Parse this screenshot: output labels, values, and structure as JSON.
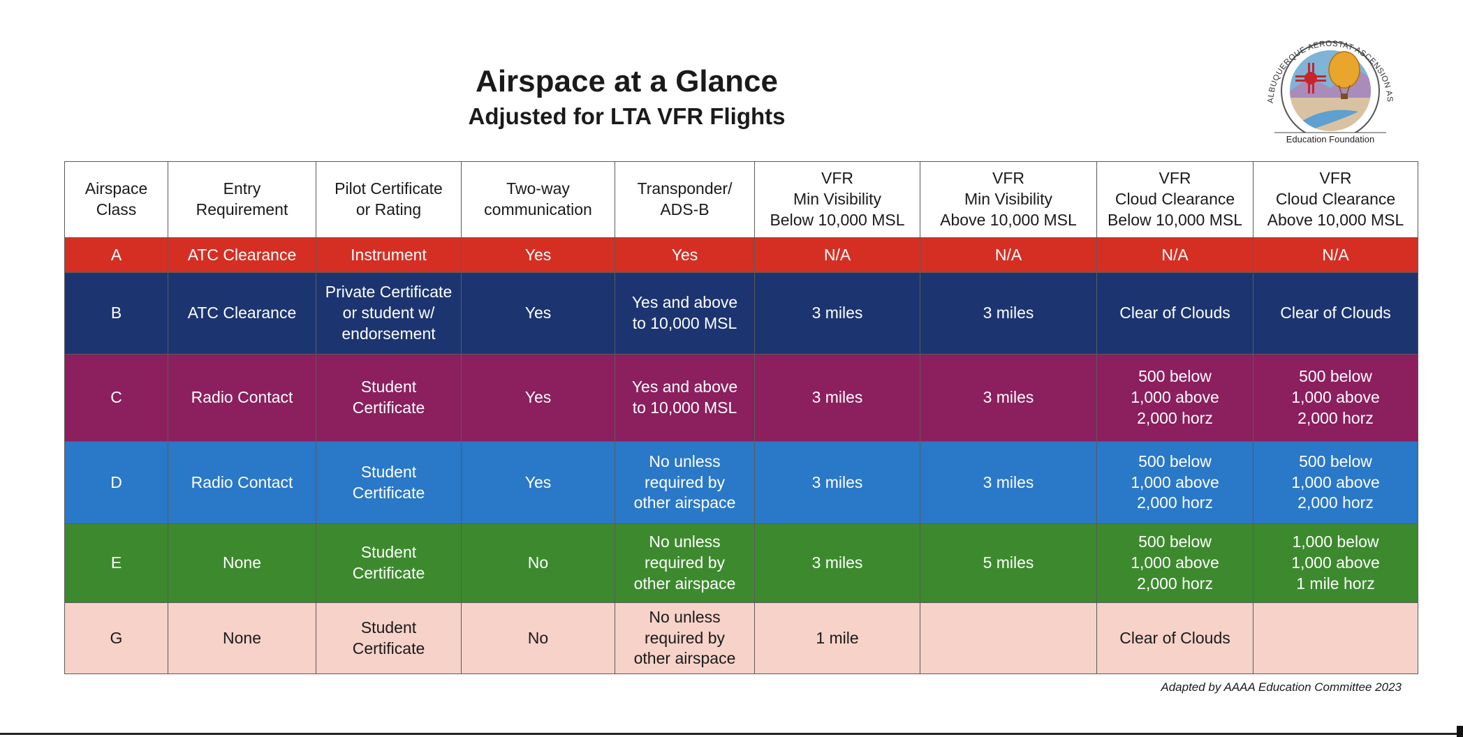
{
  "header": {
    "title": "Airspace at a Glance",
    "subtitle": "Adjusted for LTA VFR Flights"
  },
  "logo": {
    "ring_text": "ALBUQUERQUE AEROSTAT ASCENSION ASSOCIATION",
    "banner_text": "Education Foundation",
    "colors": {
      "sun": "#c8242b",
      "balloon": "#e8a62c",
      "sky": "#7fb4d6",
      "mountain": "#a98cb9",
      "ground": "#d8c2a2"
    }
  },
  "table": {
    "columns": [
      "Airspace\nClass",
      "Entry\nRequirement",
      "Pilot Certificate\nor Rating",
      "Two-way\ncommunication",
      "Transponder/\nADS-B",
      "VFR\nMin Visibility\nBelow 10,000 MSL",
      "VFR\nMin Visibility\nAbove 10,000 MSL",
      "VFR\nCloud Clearance\nBelow 10,000 MSL",
      "VFR\nCloud Clearance\nAbove 10,000 MSL"
    ],
    "rows": [
      {
        "class": "A",
        "color": "#d52f24",
        "cells": [
          "A",
          "ATC Clearance",
          "Instrument",
          "Yes",
          "Yes",
          "N/A",
          "N/A",
          "N/A",
          "N/A"
        ]
      },
      {
        "class": "B",
        "color": "#1c3571",
        "cells": [
          "B",
          "ATC Clearance",
          "Private Certificate\nor student w/\nendorsement",
          "Yes",
          "Yes and above\nto 10,000 MSL",
          "3 miles",
          "3 miles",
          "Clear of Clouds",
          "Clear of Clouds"
        ]
      },
      {
        "class": "C",
        "color": "#8c1f5e",
        "cells": [
          "C",
          "Radio Contact",
          "Student\nCertificate",
          "Yes",
          "Yes and above\nto 10,000 MSL",
          "3 miles",
          "3 miles",
          "500 below\n1,000 above\n2,000 horz",
          "500 below\n1,000 above\n2,000 horz"
        ]
      },
      {
        "class": "D",
        "color": "#2a78c8",
        "cells": [
          "D",
          "Radio Contact",
          "Student\nCertificate",
          "Yes",
          "No unless\nrequired by\nother airspace",
          "3 miles",
          "3 miles",
          "500 below\n1,000 above\n2,000 horz",
          "500 below\n1,000 above\n2,000 horz"
        ]
      },
      {
        "class": "E",
        "color": "#3c8a2d",
        "cells": [
          "E",
          "None",
          "Student\nCertificate",
          "No",
          "No unless\nrequired by\nother airspace",
          "3 miles",
          "5 miles",
          "500 below\n1,000 above\n2,000 horz",
          "1,000 below\n1,000 above\n1 mile horz"
        ]
      },
      {
        "class": "G",
        "color": "#f6d2c9",
        "cells": [
          "G",
          "None",
          "Student\nCertificate",
          "No",
          "No unless\nrequired by\nother airspace",
          "1 mile",
          "",
          "Clear of Clouds",
          ""
        ]
      }
    ]
  },
  "footer": {
    "credit": "Adapted by AAAA Education Committee 2023"
  }
}
